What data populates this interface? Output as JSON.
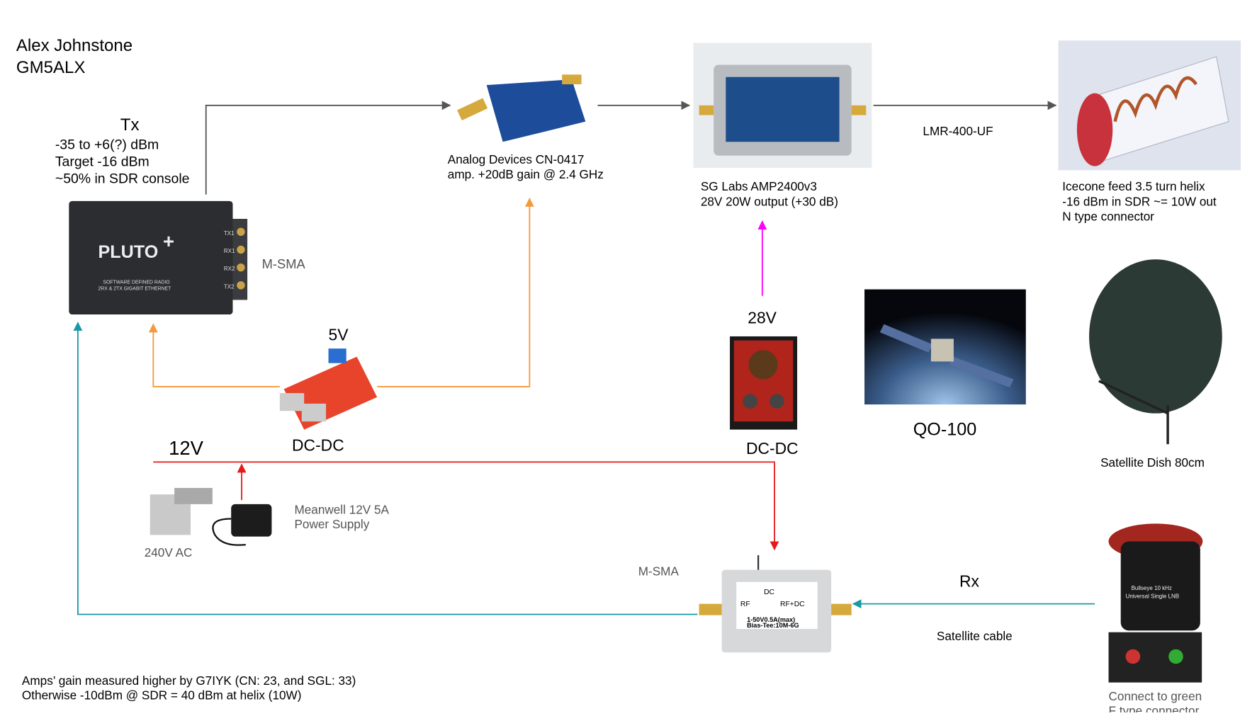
{
  "author": [
    "Alex Johnstone",
    "GM5ALX"
  ],
  "tx": {
    "title": "Tx",
    "lines": [
      "-35 to +6(?) dBm",
      "Target -16 dBm",
      "~50% in SDR console"
    ]
  },
  "pluto": {
    "brand": "PLUTO",
    "plus": "+",
    "lines": [
      "SOFTWARE DEFINED RADIO",
      "2RX & 2TX GIGABIT ETHERNET"
    ],
    "ports": [
      "TX1",
      "RX1",
      "RX2",
      "TX2"
    ],
    "connector": "M-SMA"
  },
  "preamp": {
    "lines": [
      "Analog Devices CN-0417",
      "amp. +20dB gain @ 2.4 GHz"
    ]
  },
  "amp": {
    "lines": [
      "SG Labs AMP2400v3",
      "28V 20W output (+30 dB)"
    ]
  },
  "cable_tx": "LMR-400-UF",
  "feed": {
    "lines": [
      "Icecone feed 3.5 turn helix",
      "-16 dBm in SDR ~= 10W out",
      "N type connector"
    ]
  },
  "dcdc_5v": {
    "voltage": "5V",
    "label": "DC-DC"
  },
  "dcdc_28v": {
    "voltage": "28V",
    "label": "DC-DC"
  },
  "satellite": "QO-100",
  "dish": "Satellite Dish 80cm",
  "supply": {
    "rail": "12V",
    "mains": "240V AC",
    "lines": [
      "Meanwell 12V 5A",
      "Power Supply"
    ]
  },
  "bias_tee": {
    "connector": "M-SMA",
    "dc": "DC",
    "rf": "RF",
    "rfdc": "RF+DC",
    "lines": [
      "1-50V0.5A(max)",
      "Bias-Tee:10M-6G"
    ]
  },
  "rx": {
    "title": "Rx",
    "cable": "Satellite cable"
  },
  "lnb": {
    "brand": "Bullseye 10 kHz",
    "model": "Universal Single LNB",
    "lines": [
      "Connect to green",
      "F type connector"
    ]
  },
  "notes": [
    "Amps’ gain measured higher by G7IYK (CN: 23, and SGL: 33)",
    "Otherwise -10dBm @ SDR = 40 dBm at helix (10W)"
  ]
}
